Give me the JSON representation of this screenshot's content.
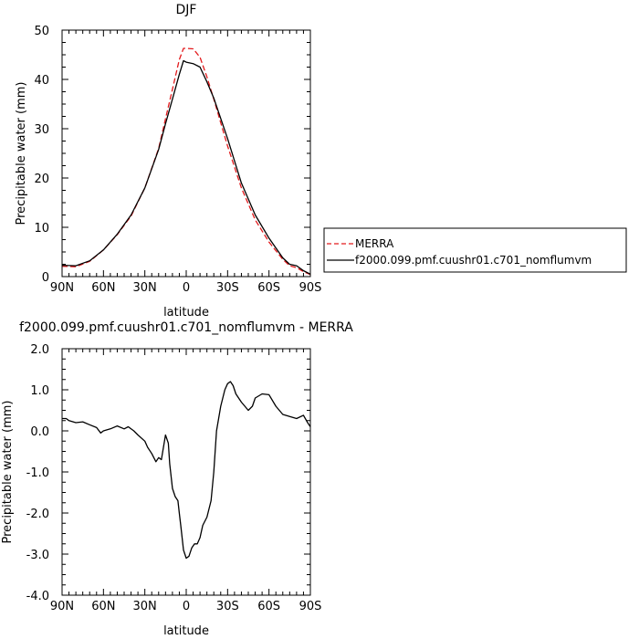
{
  "chart_data": [
    {
      "type": "line",
      "title": "DJF",
      "xlabel": "latitude",
      "ylabel": "Precipitable water (mm)",
      "xlim": [
        90,
        -90
      ],
      "ylim": [
        0,
        50
      ],
      "xticks": [
        90,
        60,
        30,
        0,
        -30,
        -60,
        -90
      ],
      "xtick_labels": [
        "90N",
        "60N",
        "30N",
        "0",
        "30S",
        "60S",
        "90S"
      ],
      "yticks": [
        0,
        10,
        20,
        30,
        40,
        50
      ],
      "ytick_labels": [
        "0",
        "10",
        "20",
        "30",
        "40",
        "50"
      ],
      "legend_position": "right",
      "series": [
        {
          "name": "MERRA",
          "color": "#e31a1c",
          "dash": "dashed",
          "x": [
            90,
            80,
            70,
            60,
            50,
            40,
            30,
            20,
            15,
            10,
            5,
            2,
            0,
            -5,
            -10,
            -15,
            -20,
            -30,
            -40,
            -50,
            -60,
            -70,
            -75,
            -80,
            -85,
            -90
          ],
          "y": [
            2.1,
            2.0,
            3.1,
            5.4,
            8.5,
            12.3,
            18.0,
            26.0,
            32.0,
            38.0,
            44.0,
            46.3,
            46.3,
            46.2,
            44.5,
            40.5,
            36.0,
            26.5,
            18.0,
            11.5,
            7.0,
            3.5,
            2.2,
            1.8,
            1.0,
            0.4
          ]
        },
        {
          "name": "f2000.099.pmf.cuushr01.c701_nomflumvm",
          "color": "#000000",
          "dash": "solid",
          "x": [
            90,
            80,
            70,
            60,
            50,
            40,
            30,
            20,
            15,
            10,
            5,
            2,
            0,
            -5,
            -10,
            -15,
            -20,
            -30,
            -40,
            -50,
            -60,
            -70,
            -75,
            -80,
            -85,
            -90
          ],
          "y": [
            2.3,
            2.2,
            3.2,
            5.4,
            8.6,
            12.5,
            18.0,
            25.8,
            31.0,
            36.0,
            41.0,
            43.8,
            43.5,
            43.2,
            42.5,
            39.5,
            36.2,
            28.0,
            19.0,
            12.5,
            7.8,
            3.8,
            2.5,
            2.2,
            1.2,
            0.5
          ]
        }
      ]
    },
    {
      "type": "line",
      "title": "f2000.099.pmf.cuushr01.c701_nomflumvm - MERRA",
      "xlabel": "latitude",
      "ylabel": "Precipitable water (mm)",
      "xlim": [
        90,
        -90
      ],
      "ylim": [
        -4.0,
        2.0
      ],
      "xticks": [
        90,
        60,
        30,
        0,
        -30,
        -60,
        -90
      ],
      "xtick_labels": [
        "90N",
        "60N",
        "30N",
        "0",
        "30S",
        "60S",
        "90S"
      ],
      "yticks": [
        -4.0,
        -3.0,
        -2.0,
        -1.0,
        0.0,
        1.0,
        2.0
      ],
      "ytick_labels": [
        "-4.0",
        "-3.0",
        "-2.0",
        "-1.0",
        "0.0",
        "1.0",
        "2.0"
      ],
      "series": [
        {
          "color": "#000000",
          "dash": "solid",
          "x": [
            90,
            87,
            85,
            80,
            75,
            70,
            65,
            62,
            60,
            55,
            50,
            45,
            42,
            38,
            35,
            30,
            28,
            25,
            22,
            20,
            18,
            16,
            15,
            13,
            12,
            10,
            8,
            6,
            5,
            4,
            3,
            2,
            1,
            0,
            -2,
            -4,
            -6,
            -8,
            -10,
            -12,
            -15,
            -18,
            -20,
            -22,
            -25,
            -28,
            -30,
            -32,
            -34,
            -36,
            -40,
            -45,
            -48,
            -50,
            -55,
            -60,
            -65,
            -70,
            -75,
            -80,
            -85,
            -88,
            -90
          ],
          "y": [
            0.3,
            0.3,
            0.25,
            0.2,
            0.22,
            0.15,
            0.08,
            -0.05,
            0.0,
            0.05,
            0.12,
            0.05,
            0.1,
            0.0,
            -0.1,
            -0.25,
            -0.4,
            -0.55,
            -0.75,
            -0.65,
            -0.7,
            -0.3,
            -0.1,
            -0.3,
            -0.8,
            -1.4,
            -1.6,
            -1.7,
            -2.0,
            -2.3,
            -2.6,
            -2.9,
            -3.0,
            -3.1,
            -3.05,
            -2.85,
            -2.75,
            -2.75,
            -2.6,
            -2.3,
            -2.1,
            -1.7,
            -1.0,
            0.0,
            0.6,
            1.0,
            1.15,
            1.2,
            1.1,
            0.9,
            0.7,
            0.5,
            0.6,
            0.8,
            0.9,
            0.88,
            0.6,
            0.4,
            0.35,
            0.3,
            0.38,
            0.2,
            0.1
          ]
        }
      ]
    }
  ]
}
